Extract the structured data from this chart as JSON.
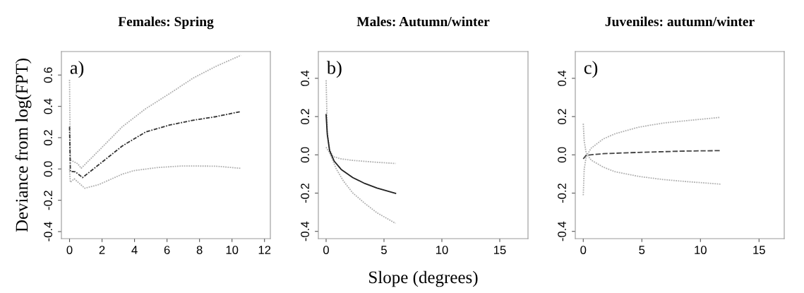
{
  "chart_data": [
    {
      "type": "line",
      "title": "Females: Spring",
      "ylabel": "Deviance from log(FPT)",
      "annotations": [
        "a)"
      ],
      "xlim": [
        -0.5,
        12.36
      ],
      "ylim": [
        -0.445,
        0.75
      ],
      "xticks": [
        0,
        2,
        4,
        6,
        8,
        10,
        12
      ],
      "yticks": [
        {
          "value": -0.4,
          "label": "-0.4"
        },
        {
          "value": -0.2,
          "label": "-0.2"
        },
        {
          "value": 0,
          "label": "0.0"
        },
        {
          "value": 0.2,
          "label": "0.2"
        },
        {
          "value": 0.4,
          "label": "0.4"
        },
        {
          "value": 0.6,
          "label": "0.6"
        }
      ],
      "grid": false,
      "series": [
        {
          "color": "#b0b0b0",
          "line_style": "dotted",
          "x": [
            0,
            0.05,
            0.5,
            0.72,
            1.8,
            3.25,
            4.7,
            6.14,
            7.6,
            9.0,
            10.55
          ],
          "values": [
            0.57,
            0.057,
            0.034,
            0.005,
            0.117,
            0.27,
            0.386,
            0.48,
            0.58,
            0.655,
            0.726
          ]
        },
        {
          "color": "#333333",
          "line_style": "dashdot",
          "x": [
            0,
            0.05,
            0.36,
            0.8,
            1.8,
            3.25,
            4.7,
            6.14,
            7.6,
            9.0,
            10.55
          ],
          "values": [
            0.27,
            -0.015,
            -0.018,
            -0.055,
            0.027,
            0.147,
            0.237,
            0.28,
            0.311,
            0.334,
            0.367
          ]
        },
        {
          "color": "#b0b0b0",
          "line_style": "dotted",
          "x": [
            0,
            0.05,
            0.29,
            0.94,
            1.8,
            3.25,
            4.0,
            5.4,
            6.9,
            9.0,
            10.55
          ],
          "values": [
            0.0,
            -0.085,
            -0.063,
            -0.123,
            -0.1,
            -0.033,
            -0.01,
            0.009,
            0.019,
            0.018,
            0.004
          ]
        }
      ]
    },
    {
      "type": "line",
      "title": "Males: Autumn/winter",
      "xlabel": "Slope (degrees)",
      "annotations": [
        "b)"
      ],
      "xlim": [
        -0.67,
        17.44
      ],
      "ylim": [
        -0.438,
        0.54
      ],
      "xticks": [
        0,
        5,
        10,
        15
      ],
      "yticks": [
        {
          "value": -0.4,
          "label": "-0.4"
        },
        {
          "value": -0.2,
          "label": "-0.2"
        },
        {
          "value": 0,
          "label": "0.0"
        },
        {
          "value": 0.2,
          "label": "0.2"
        },
        {
          "value": 0.4,
          "label": "0.4"
        }
      ],
      "grid": false,
      "series": [
        {
          "color": "#b0b0b0",
          "line_style": "dotted",
          "x": [
            0,
            0.1,
            0.3,
            0.6,
            1.3,
            2.3,
            4.4,
            6.0
          ],
          "values": [
            0.39,
            0.12,
            0.028,
            -0.009,
            -0.021,
            -0.029,
            -0.039,
            -0.045
          ]
        },
        {
          "color": "#b0b0b0",
          "line_style": "dotted",
          "x": [
            0,
            0.3,
            0.9,
            1.5,
            2.3,
            3.35,
            4.4,
            6.0
          ],
          "values": [
            0.04,
            0.01,
            -0.076,
            -0.137,
            -0.199,
            -0.254,
            -0.303,
            -0.358
          ]
        },
        {
          "color": "#222222",
          "line_style": "solid",
          "x": [
            0,
            0.1,
            0.3,
            0.7,
            1.3,
            2.3,
            3.35,
            4.4,
            6.0
          ],
          "values": [
            0.21,
            0.108,
            0.022,
            -0.033,
            -0.076,
            -0.119,
            -0.15,
            -0.174,
            -0.201
          ]
        }
      ]
    },
    {
      "type": "line",
      "title": "Juveniles: autumn/winter",
      "annotations": [
        "c)"
      ],
      "xlim": [
        -0.68,
        17.15
      ],
      "ylim": [
        -0.438,
        0.54
      ],
      "xticks": [
        0,
        5,
        10,
        15
      ],
      "yticks": [
        {
          "value": -0.4,
          "label": "-0.4"
        },
        {
          "value": -0.2,
          "label": "-0.2"
        },
        {
          "value": 0,
          "label": "0.0"
        },
        {
          "value": 0.2,
          "label": "0.2"
        },
        {
          "value": 0.4,
          "label": "0.4"
        }
      ],
      "grid": false,
      "series": [
        {
          "color": "#b0b0b0",
          "line_style": "dotted",
          "x": [
            0,
            0.08,
            0.25,
            0.66,
            1.7,
            2.7,
            4.75,
            6.8,
            8.85,
            11.7
          ],
          "values": [
            0.163,
            0.071,
            0.01,
            -0.027,
            -0.064,
            -0.088,
            -0.113,
            -0.129,
            -0.14,
            -0.153
          ]
        },
        {
          "color": "#b0b0b0",
          "line_style": "dotted",
          "x": [
            0,
            0.08,
            0.25,
            0.66,
            1.7,
            2.7,
            4.75,
            6.8,
            8.85,
            11.7
          ],
          "values": [
            -0.211,
            -0.076,
            -0.009,
            0.034,
            0.083,
            0.11,
            0.145,
            0.166,
            0.179,
            0.196
          ]
        },
        {
          "color": "#444444",
          "line_style": "dashed",
          "x": [
            0,
            0.25,
            1.7,
            4.75,
            8.85,
            11.7
          ],
          "values": [
            -0.021,
            -0.002,
            0.006,
            0.013,
            0.02,
            0.022
          ]
        }
      ]
    }
  ]
}
